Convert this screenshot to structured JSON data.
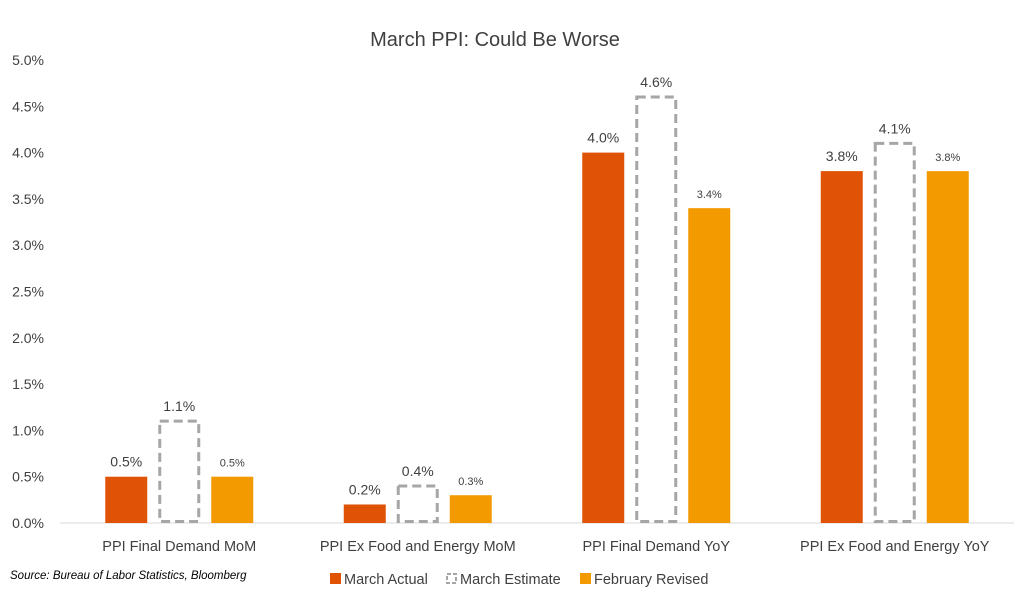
{
  "chart_data": {
    "type": "bar",
    "title": "March PPI: Could Be Worse",
    "categories": [
      "PPI Final Demand MoM",
      "PPI Ex Food and Energy MoM",
      "PPI Final Demand YoY",
      "PPI Ex Food and Energy YoY"
    ],
    "series": [
      {
        "name": "March Actual",
        "values": [
          0.5,
          0.2,
          4.0,
          3.8
        ],
        "labels": [
          "0.5%",
          "0.2%",
          "4.0%",
          "3.8%"
        ],
        "color": "#e05206",
        "style": "solid"
      },
      {
        "name": "March Estimate",
        "values": [
          1.1,
          0.4,
          4.6,
          4.1
        ],
        "labels": [
          "1.1%",
          "0.4%",
          "4.6%",
          "4.1%"
        ],
        "color": "#a6a6a6",
        "style": "dashed-outline"
      },
      {
        "name": "February Revised",
        "values": [
          0.5,
          0.3,
          3.4,
          3.8
        ],
        "labels": [
          "0.5%",
          "0.3%",
          "3.4%",
          "3.8%"
        ],
        "color": "#f29a00",
        "style": "solid"
      }
    ],
    "y_ticks": [
      "0.0%",
      "0.5%",
      "1.0%",
      "1.5%",
      "2.0%",
      "2.5%",
      "3.0%",
      "3.5%",
      "4.0%",
      "4.5%",
      "5.0%"
    ],
    "ylim": [
      0,
      5
    ],
    "xlabel": "",
    "ylabel": "",
    "grid": false,
    "legend_position": "bottom"
  },
  "source": "Source: Bureau of Labor Statistics, Bloomberg"
}
